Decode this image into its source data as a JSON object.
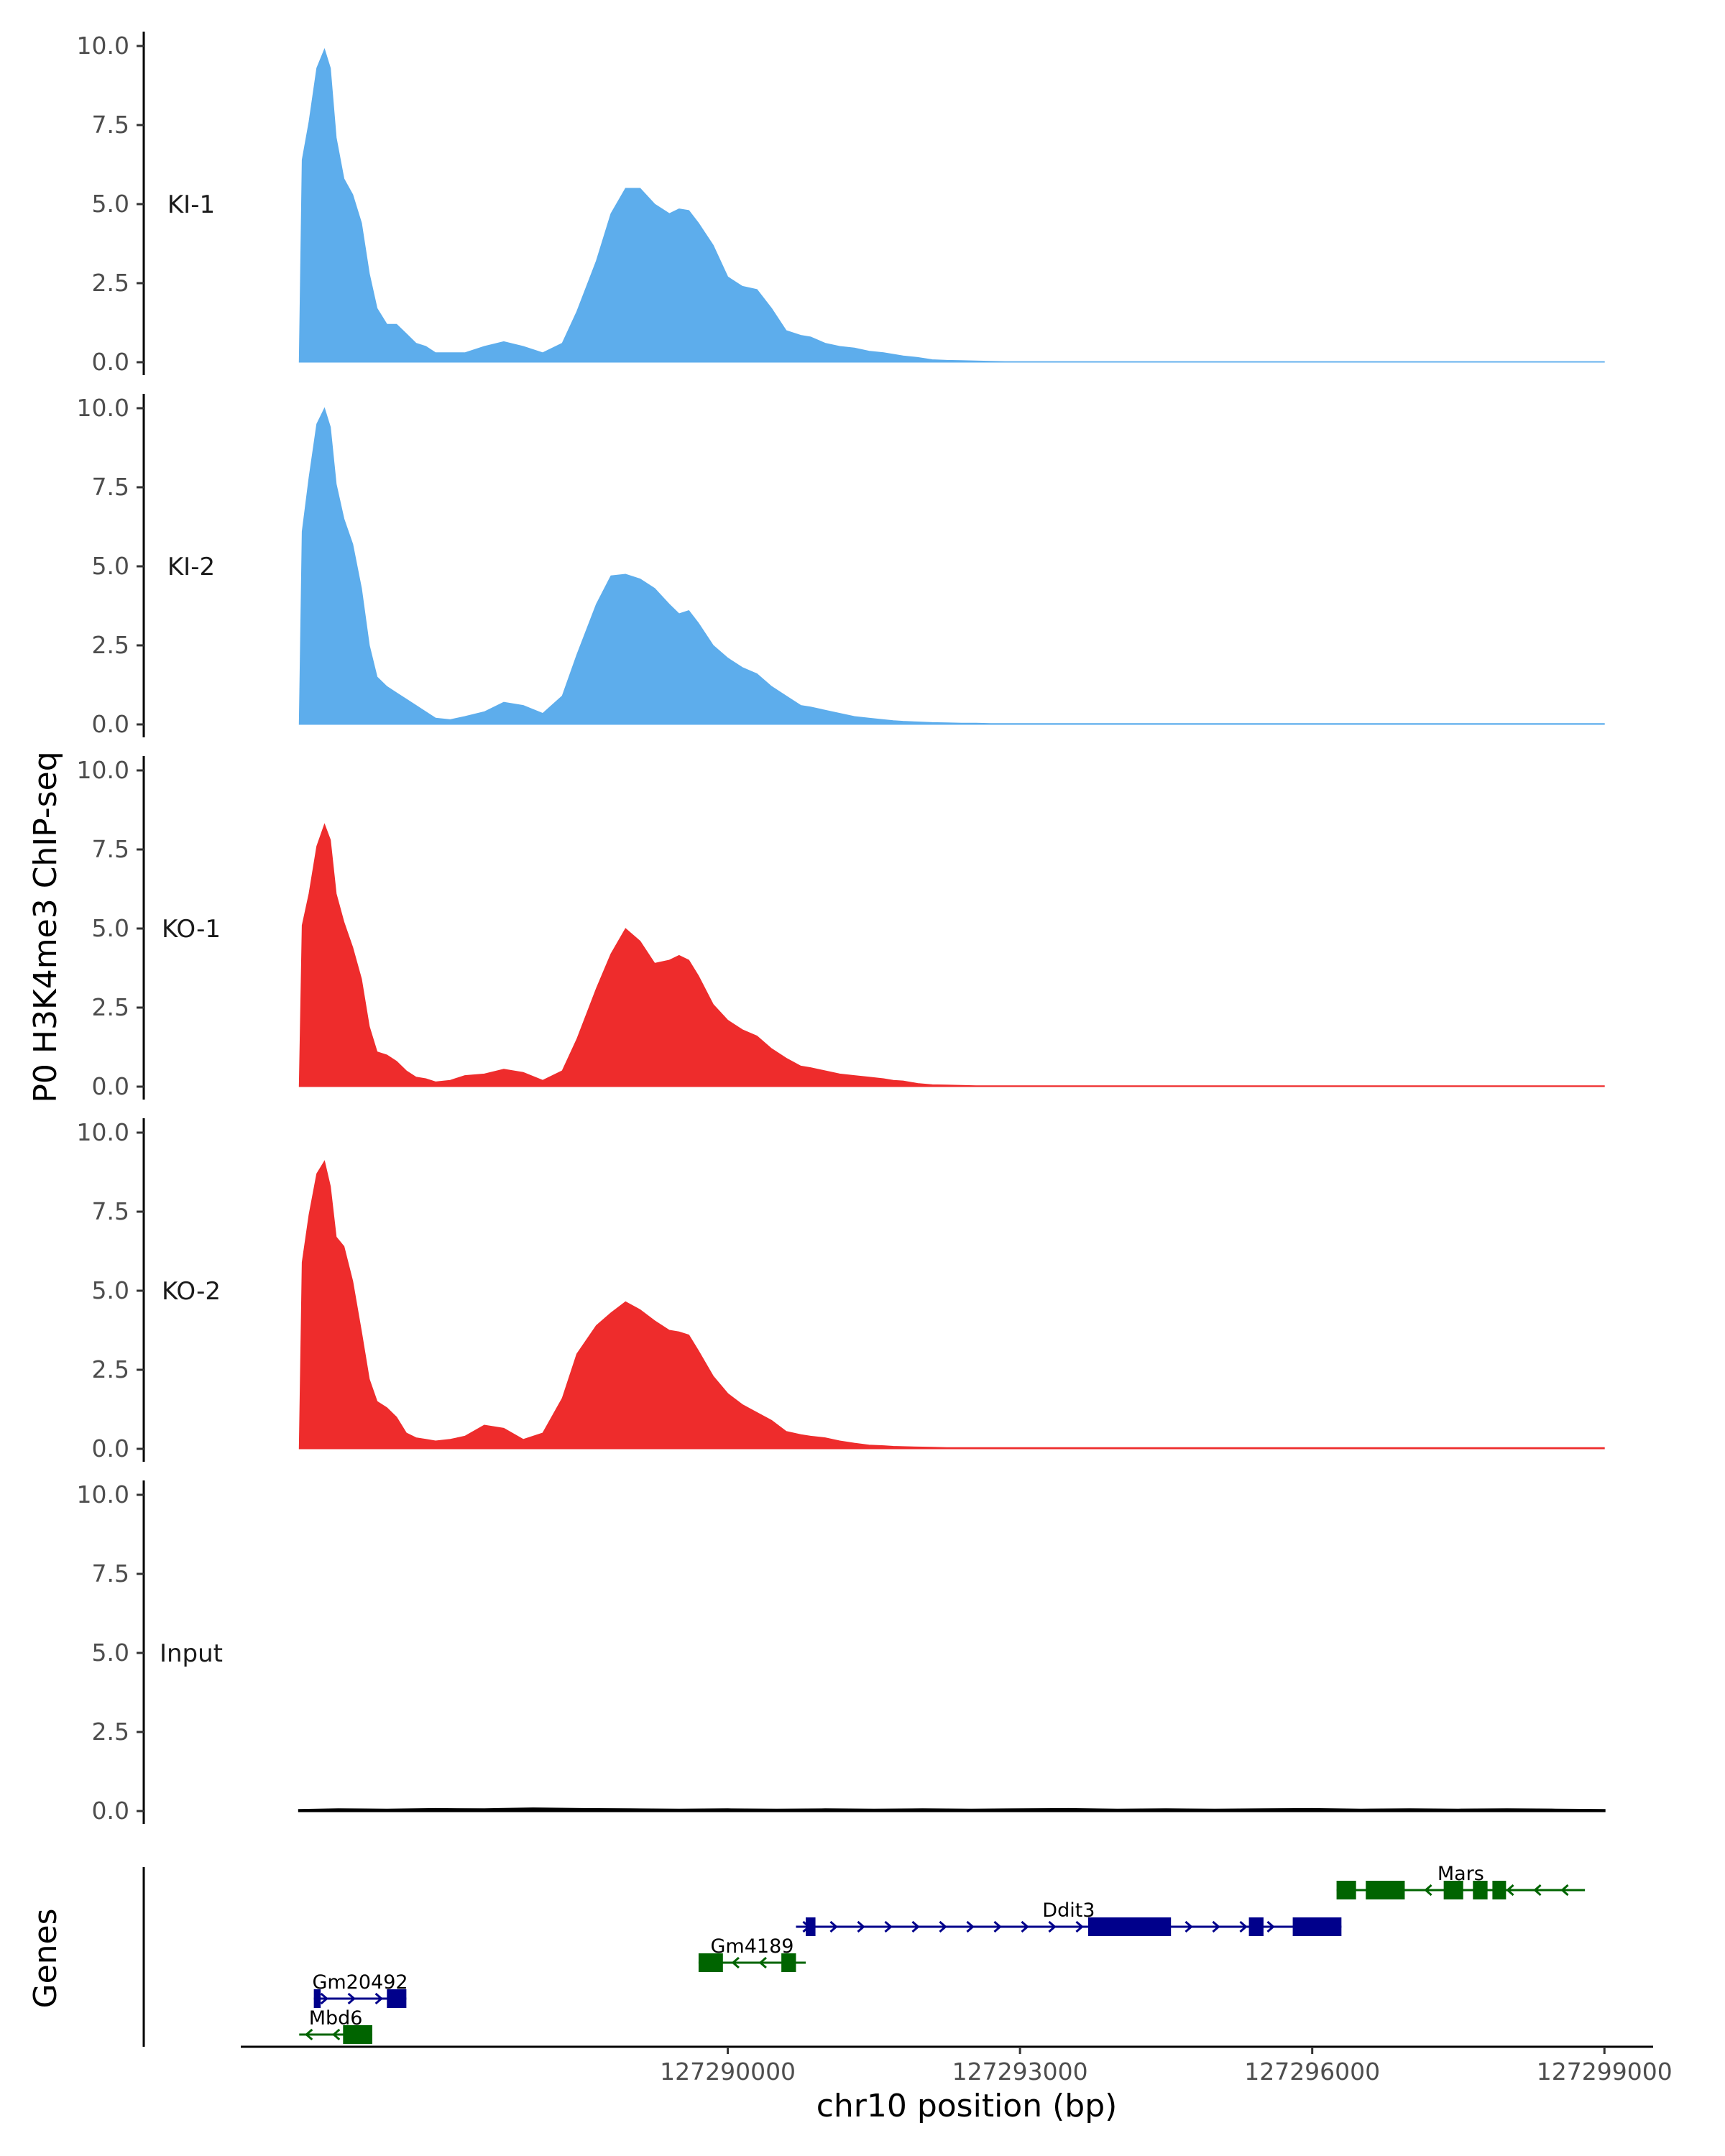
{
  "chart_data": {
    "type": "area",
    "ylabel": "P0 H3K4me3 ChIP-seq",
    "xlabel": "chr10 position (bp)",
    "genes_label": "Genes",
    "xlim": [
      127285000,
      127299500
    ],
    "ylim": [
      0,
      10
    ],
    "y_ticks": [
      0,
      2.5,
      5,
      7.5,
      10
    ],
    "y_tick_labels": [
      "0.0",
      "2.5",
      "5.0",
      "7.5",
      "10.0"
    ],
    "x_ticks": [
      127290000,
      127293000,
      127296000,
      127299000
    ],
    "x_tick_labels": [
      "127290000",
      "127293000",
      "127296000",
      "127299000"
    ],
    "tracks": [
      {
        "name": "KI-1",
        "color": "#5DADEC",
        "x": [
          127285600,
          127285630,
          127285700,
          127285780,
          127285860,
          127285920,
          127285980,
          127286060,
          127286150,
          127286240,
          127286320,
          127286400,
          127286500,
          127286600,
          127286700,
          127286800,
          127286900,
          127287000,
          127287150,
          127287300,
          127287500,
          127287700,
          127287900,
          127288100,
          127288300,
          127288450,
          127288650,
          127288800,
          127288950,
          127289100,
          127289250,
          127289400,
          127289500,
          127289600,
          127289700,
          127289850,
          127290000,
          127290150,
          127290300,
          127290450,
          127290600,
          127290750,
          127290850,
          127291000,
          127291150,
          127291300,
          127291450,
          127291600,
          127291700,
          127291800,
          127291950,
          127292100,
          127292250,
          127292400,
          127292550,
          127292700,
          127292850,
          127293000,
          127293200,
          127293400,
          127293600,
          127293800,
          127294000,
          127294300,
          127294600,
          127295000,
          127295500,
          127296000,
          127296500,
          127297000,
          127297500,
          127298000,
          127298500,
          127299000
        ],
        "y": [
          0,
          6.4,
          7.6,
          9.3,
          9.9,
          9.3,
          7.1,
          5.8,
          5.3,
          4.4,
          2.8,
          1.7,
          1.2,
          1.2,
          0.9,
          0.6,
          0.5,
          0.3,
          0.3,
          0.3,
          0.5,
          0.65,
          0.5,
          0.3,
          0.6,
          1.6,
          3.2,
          4.7,
          5.5,
          5.5,
          5.0,
          4.7,
          4.85,
          4.8,
          4.4,
          3.7,
          2.7,
          2.4,
          2.3,
          1.7,
          1.0,
          0.85,
          0.8,
          0.6,
          0.5,
          0.45,
          0.35,
          0.3,
          0.25,
          0.2,
          0.15,
          0.08,
          0.06,
          0.05,
          0.04,
          0.03,
          0.02,
          0.02,
          0.02,
          0.02,
          0.02,
          0.02,
          0.02,
          0.02,
          0.02,
          0.02,
          0.02,
          0.02,
          0.02,
          0.02,
          0.02,
          0.02,
          0.02,
          0.02
        ]
      },
      {
        "name": "KI-2",
        "color": "#5DADEC",
        "x": [
          127285600,
          127285630,
          127285700,
          127285780,
          127285860,
          127285920,
          127285980,
          127286060,
          127286150,
          127286240,
          127286320,
          127286400,
          127286500,
          127286600,
          127286700,
          127286800,
          127286900,
          127287000,
          127287150,
          127287300,
          127287500,
          127287700,
          127287900,
          127288100,
          127288300,
          127288450,
          127288650,
          127288800,
          127288950,
          127289100,
          127289250,
          127289400,
          127289500,
          127289600,
          127289700,
          127289850,
          127290000,
          127290150,
          127290300,
          127290450,
          127290600,
          127290750,
          127290850,
          127291000,
          127291150,
          127291300,
          127291450,
          127291600,
          127291700,
          127291800,
          127291950,
          127292100,
          127292250,
          127292400,
          127292550,
          127292700,
          127292850,
          127293000,
          127293200,
          127293400,
          127293600,
          127293800,
          127294000,
          127294300,
          127294600,
          127295000,
          127295500,
          127296000,
          127296500,
          127297000,
          127297500,
          127298000,
          127298500,
          127299000
        ],
        "y": [
          0,
          6.1,
          7.8,
          9.5,
          10.0,
          9.4,
          7.6,
          6.5,
          5.7,
          4.3,
          2.5,
          1.5,
          1.2,
          1.0,
          0.8,
          0.6,
          0.4,
          0.2,
          0.15,
          0.25,
          0.4,
          0.7,
          0.6,
          0.35,
          0.9,
          2.2,
          3.8,
          4.7,
          4.75,
          4.6,
          4.3,
          3.8,
          3.5,
          3.6,
          3.2,
          2.5,
          2.1,
          1.8,
          1.6,
          1.2,
          0.9,
          0.6,
          0.55,
          0.45,
          0.35,
          0.25,
          0.2,
          0.15,
          0.12,
          0.1,
          0.08,
          0.06,
          0.05,
          0.04,
          0.04,
          0.03,
          0.03,
          0.03,
          0.03,
          0.03,
          0.03,
          0.03,
          0.03,
          0.03,
          0.03,
          0.03,
          0.03,
          0.03,
          0.03,
          0.03,
          0.03,
          0.03,
          0.03,
          0.03
        ]
      },
      {
        "name": "KO-1",
        "color": "#EE2C2C",
        "x": [
          127285600,
          127285630,
          127285700,
          127285780,
          127285860,
          127285920,
          127285980,
          127286060,
          127286150,
          127286240,
          127286320,
          127286400,
          127286500,
          127286600,
          127286700,
          127286800,
          127286900,
          127287000,
          127287150,
          127287300,
          127287500,
          127287700,
          127287900,
          127288100,
          127288300,
          127288450,
          127288650,
          127288800,
          127288950,
          127289100,
          127289250,
          127289400,
          127289500,
          127289600,
          127289700,
          127289850,
          127290000,
          127290150,
          127290300,
          127290450,
          127290600,
          127290750,
          127290850,
          127291000,
          127291150,
          127291300,
          127291450,
          127291600,
          127291700,
          127291800,
          127291950,
          127292100,
          127292250,
          127292400,
          127292550,
          127292700,
          127292850,
          127293000,
          127293200,
          127293400,
          127293600,
          127293800,
          127294000,
          127294300,
          127294600,
          127295000,
          127295500,
          127296000,
          127296500,
          127297000,
          127297500,
          127298000,
          127298500,
          127299000
        ],
        "y": [
          0,
          5.1,
          6.1,
          7.6,
          8.3,
          7.8,
          6.1,
          5.2,
          4.4,
          3.4,
          1.9,
          1.1,
          1.0,
          0.8,
          0.5,
          0.3,
          0.25,
          0.15,
          0.2,
          0.35,
          0.4,
          0.55,
          0.45,
          0.2,
          0.5,
          1.5,
          3.1,
          4.2,
          5.0,
          4.6,
          3.9,
          4.0,
          4.15,
          4.0,
          3.5,
          2.6,
          2.1,
          1.8,
          1.6,
          1.2,
          0.9,
          0.65,
          0.6,
          0.5,
          0.4,
          0.35,
          0.3,
          0.25,
          0.2,
          0.18,
          0.1,
          0.06,
          0.05,
          0.04,
          0.03,
          0.03,
          0.03,
          0.03,
          0.03,
          0.03,
          0.03,
          0.03,
          0.03,
          0.03,
          0.03,
          0.03,
          0.03,
          0.03,
          0.03,
          0.03,
          0.03,
          0.03,
          0.03,
          0.03
        ]
      },
      {
        "name": "KO-2",
        "color": "#EE2C2C",
        "x": [
          127285600,
          127285630,
          127285700,
          127285780,
          127285860,
          127285920,
          127285980,
          127286060,
          127286150,
          127286240,
          127286320,
          127286400,
          127286500,
          127286600,
          127286700,
          127286800,
          127286900,
          127287000,
          127287150,
          127287300,
          127287500,
          127287700,
          127287900,
          127288100,
          127288300,
          127288450,
          127288650,
          127288800,
          127288950,
          127289100,
          127289250,
          127289400,
          127289500,
          127289600,
          127289700,
          127289850,
          127290000,
          127290150,
          127290300,
          127290450,
          127290600,
          127290750,
          127290850,
          127291000,
          127291150,
          127291300,
          127291450,
          127291600,
          127291700,
          127291800,
          127291950,
          127292100,
          127292250,
          127292400,
          127292550,
          127292700,
          127292850,
          127293000,
          127293200,
          127293400,
          127293600,
          127293800,
          127294000,
          127294300,
          127294600,
          127295000,
          127295500,
          127296000,
          127296500,
          127297000,
          127297500,
          127298000,
          127298500,
          127299000
        ],
        "y": [
          0,
          5.9,
          7.4,
          8.7,
          9.1,
          8.3,
          6.7,
          6.4,
          5.3,
          3.7,
          2.2,
          1.5,
          1.3,
          1.0,
          0.5,
          0.35,
          0.3,
          0.25,
          0.3,
          0.4,
          0.75,
          0.65,
          0.3,
          0.5,
          1.6,
          3.0,
          3.9,
          4.3,
          4.65,
          4.4,
          4.05,
          3.75,
          3.7,
          3.6,
          3.1,
          2.3,
          1.75,
          1.4,
          1.15,
          0.9,
          0.55,
          0.45,
          0.4,
          0.35,
          0.25,
          0.18,
          0.12,
          0.1,
          0.08,
          0.07,
          0.06,
          0.05,
          0.04,
          0.04,
          0.04,
          0.04,
          0.04,
          0.04,
          0.04,
          0.04,
          0.04,
          0.04,
          0.04,
          0.04,
          0.04,
          0.04,
          0.04,
          0.04,
          0.04,
          0.04,
          0.04,
          0.04,
          0.04,
          0.04
        ]
      },
      {
        "name": "Input",
        "color": "#000000",
        "x": [
          127285600,
          127286000,
          127286500,
          127287000,
          127287500,
          127288000,
          127288500,
          127289000,
          127289500,
          127290000,
          127290500,
          127291000,
          127291500,
          127292000,
          127292500,
          127293000,
          127293500,
          127294000,
          127294500,
          127295000,
          127295500,
          127296000,
          127296500,
          127297000,
          127297500,
          127298000,
          127298500,
          127299000
        ],
        "y": [
          0.03,
          0.05,
          0.04,
          0.06,
          0.05,
          0.08,
          0.06,
          0.05,
          0.04,
          0.05,
          0.04,
          0.05,
          0.04,
          0.05,
          0.04,
          0.05,
          0.06,
          0.04,
          0.05,
          0.04,
          0.05,
          0.06,
          0.04,
          0.05,
          0.04,
          0.05,
          0.04,
          0.03
        ]
      }
    ],
    "genes": [
      {
        "name": "Mars",
        "strand": "-",
        "color": "#006400",
        "row": 0,
        "start": 127296250,
        "end": 127298800,
        "exons": [
          [
            127296250,
            127296450
          ],
          [
            127296550,
            127296950
          ],
          [
            127297350,
            127297550
          ],
          [
            127297650,
            127297800
          ],
          [
            127297850,
            127297990
          ]
        ]
      },
      {
        "name": "Ddit3",
        "strand": "+",
        "color": "#00008B",
        "row": 1,
        "start": 127290700,
        "end": 127296300,
        "exons": [
          [
            127290800,
            127290900
          ],
          [
            127293700,
            127294550
          ],
          [
            127295350,
            127295500
          ],
          [
            127295800,
            127296300
          ]
        ]
      },
      {
        "name": "Gm4189",
        "strand": "-",
        "color": "#006400",
        "row": 2,
        "start": 127289700,
        "end": 127290800,
        "exons": [
          [
            127289700,
            127289950
          ],
          [
            127290550,
            127290700
          ]
        ]
      },
      {
        "name": "Gm20492",
        "strand": "+",
        "color": "#00008B",
        "row": 3,
        "start": 127285750,
        "end": 127286700,
        "exons": [
          [
            127285750,
            127285820
          ],
          [
            127286500,
            127286700
          ]
        ]
      },
      {
        "name": "Mbd6",
        "strand": "-",
        "color": "#006400",
        "row": 4,
        "start": 127285600,
        "end": 127286350,
        "exons": [
          [
            127286050,
            127286350
          ]
        ]
      }
    ]
  }
}
